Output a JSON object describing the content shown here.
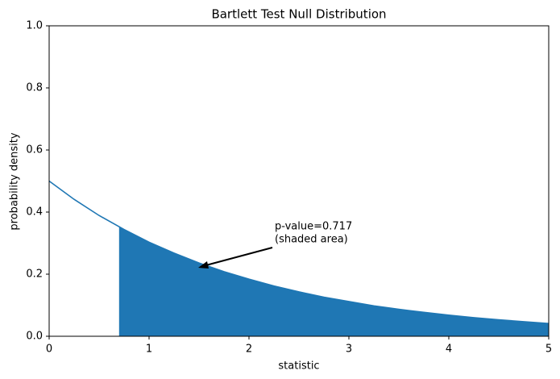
{
  "chart_data": {
    "type": "line",
    "title": "Bartlett Test Null Distribution",
    "x_label": "statistic",
    "y_label": "probability density",
    "x": [
      0,
      0.25,
      0.5,
      0.75,
      1,
      1.25,
      1.5,
      1.75,
      2,
      2.25,
      2.5,
      2.75,
      3,
      3.25,
      3.5,
      3.75,
      4,
      4.25,
      4.5,
      4.75,
      5
    ],
    "series": [
      {
        "color": "#1f77b4",
        "values": [
          0.5,
          0.441,
          0.389,
          0.344,
          0.303,
          0.268,
          0.236,
          0.208,
          0.184,
          0.162,
          0.143,
          0.126,
          0.112,
          0.098,
          0.087,
          0.077,
          0.068,
          0.06,
          0.053,
          0.047,
          0.041
        ]
      }
    ],
    "shaded_area": {
      "color": "#1f77b4",
      "x": [
        0.7,
        0.75,
        1,
        1.25,
        1.5,
        1.75,
        2,
        2.25,
        2.5,
        2.75,
        3,
        3.25,
        3.5,
        3.75,
        4,
        4.25,
        4.5,
        4.75,
        5
      ],
      "values": [
        0.352,
        0.344,
        0.303,
        0.268,
        0.236,
        0.208,
        0.184,
        0.162,
        0.143,
        0.126,
        0.112,
        0.098,
        0.087,
        0.077,
        0.068,
        0.06,
        0.053,
        0.047,
        0.041
      ]
    },
    "annotation": [
      "p-value=0.717",
      "(shaded area)"
    ],
    "xlim": [
      0,
      5
    ],
    "ylim": [
      0,
      1
    ],
    "xticks": [
      0,
      1,
      2,
      3,
      4,
      5
    ],
    "yticks": [
      {
        "value": 0,
        "label": "0.0"
      },
      {
        "value": 0.2,
        "label": "0.2"
      },
      {
        "value": 0.4,
        "label": "0.4"
      },
      {
        "value": 0.6,
        "label": "0.6"
      },
      {
        "value": 0.8,
        "label": "0.8"
      },
      {
        "value": 1,
        "label": "1.0"
      }
    ]
  }
}
